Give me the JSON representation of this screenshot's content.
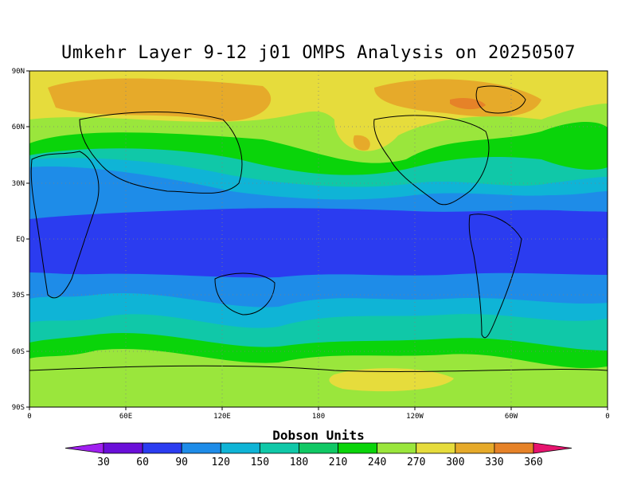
{
  "title": "Umkehr Layer 9-12 j01 OMPS Analysis on 20250507",
  "map": {
    "lat_labels": [
      "90N",
      "60N",
      "30N",
      "EQ",
      "30S",
      "60S",
      "90S"
    ],
    "lon_labels": [
      "0",
      "60E",
      "120E",
      "180",
      "120W",
      "60W",
      "0"
    ],
    "grid": true,
    "grid_style": "dotted"
  },
  "colorbar": {
    "title": "Dobson Units",
    "levels": [
      "30",
      "60",
      "90",
      "120",
      "150",
      "180",
      "210",
      "240",
      "270",
      "300",
      "330",
      "360"
    ],
    "colors": [
      "#a020f0",
      "#6a0fd8",
      "#2b3cf0",
      "#1e8ce8",
      "#0fb4d6",
      "#10c8a8",
      "#10c864",
      "#0ad40a",
      "#9ae63c",
      "#e6dc3c",
      "#e6aa2a",
      "#e68228",
      "#e60a0a",
      "#e6146e"
    ],
    "band_colors": {
      "low": "#2b3cf0",
      "c90": "#1e8ce8",
      "c120": "#0fb4d6",
      "c150": "#10c8a8",
      "c180": "#0ad40a",
      "c210": "#9ae63c",
      "c240": "#e6dc3c",
      "c270": "#e6aa2a",
      "c300": "#e68228"
    }
  },
  "chart_data": {
    "type": "heatmap",
    "title": "Umkehr Layer 9-12 j01 OMPS Analysis on 20250507",
    "xlabel": "",
    "ylabel": "",
    "units": "Dobson Units",
    "x_range": [
      "0",
      "0"
    ],
    "y_range": [
      "90S",
      "90N"
    ],
    "contour_levels": [
      30,
      60,
      90,
      120,
      150,
      180,
      210,
      240,
      270,
      300,
      330,
      360
    ]
  }
}
